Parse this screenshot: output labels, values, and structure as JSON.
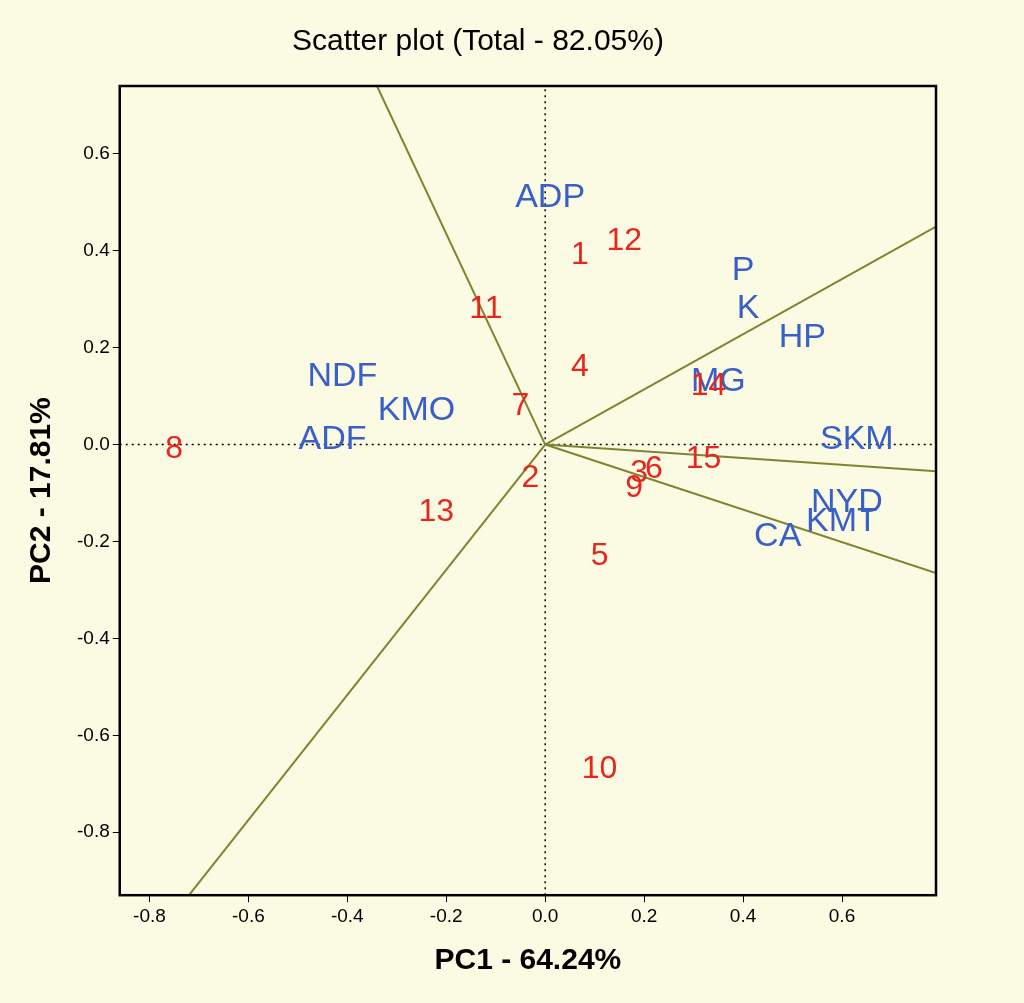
{
  "chart_data": {
    "type": "scatter",
    "title": "Scatter plot (Total - 82.05%)",
    "x_label": "PC1 - 64.24%",
    "y_label": "PC2 - 17.81%",
    "xlim": [
      -0.86,
      0.79
    ],
    "ylim": [
      -0.93,
      0.74
    ],
    "xticks": [
      -0.8,
      -0.6,
      -0.4,
      -0.2,
      {
        "value": 0,
        "label": "0.0"
      },
      0.2,
      0.4,
      0.6
    ],
    "yticks": [
      -0.8,
      -0.6,
      -0.4,
      -0.2,
      {
        "value": 0,
        "label": "0.0"
      },
      0.2,
      0.4,
      0.6
    ],
    "grid": false,
    "points": {
      "labels": [
        "1",
        "2",
        "3",
        "4",
        "5",
        "6",
        "7",
        "8",
        "9",
        "10",
        "11",
        "12",
        "13",
        "14",
        "15"
      ],
      "x": [
        0.07,
        -0.03,
        0.19,
        0.07,
        0.11,
        0.22,
        -0.05,
        -0.75,
        0.18,
        0.11,
        -0.12,
        0.16,
        -0.22,
        0.33,
        0.32
      ],
      "y": [
        0.39,
        -0.07,
        -0.06,
        0.16,
        -0.23,
        -0.05,
        0.08,
        -0.01,
        -0.09,
        -0.67,
        0.28,
        0.42,
        -0.14,
        0.12,
        -0.03
      ],
      "color": "#e8261e",
      "marker": "text"
    },
    "variables": {
      "labels": [
        "ADP",
        "P",
        "K",
        "HP",
        "MG",
        "SKM",
        "NYD",
        "KMT",
        "CA",
        "NDF",
        "KMO",
        "ADF"
      ],
      "x": [
        0.01,
        0.4,
        0.41,
        0.52,
        0.35,
        0.63,
        0.61,
        0.6,
        0.47,
        -0.41,
        -0.26,
        -0.43
      ],
      "y": [
        0.51,
        0.36,
        0.28,
        0.22,
        0.13,
        0.01,
        -0.12,
        -0.16,
        -0.19,
        0.14,
        0.07,
        0.01
      ],
      "color": "#3a5fc8",
      "marker": "text"
    },
    "vectors": {
      "origin": [
        0,
        0
      ],
      "x": [
        -0.34,
        0.79,
        0.79,
        0.79,
        -0.72
      ],
      "y": [
        0.74,
        0.45,
        -0.055,
        -0.265,
        -0.93
      ],
      "color": "#7f8430",
      "line_style": "solid"
    },
    "reference_lines": {
      "x": [
        0
      ],
      "y": [
        0
      ],
      "color": "#000000",
      "line_style": "dotted"
    }
  }
}
